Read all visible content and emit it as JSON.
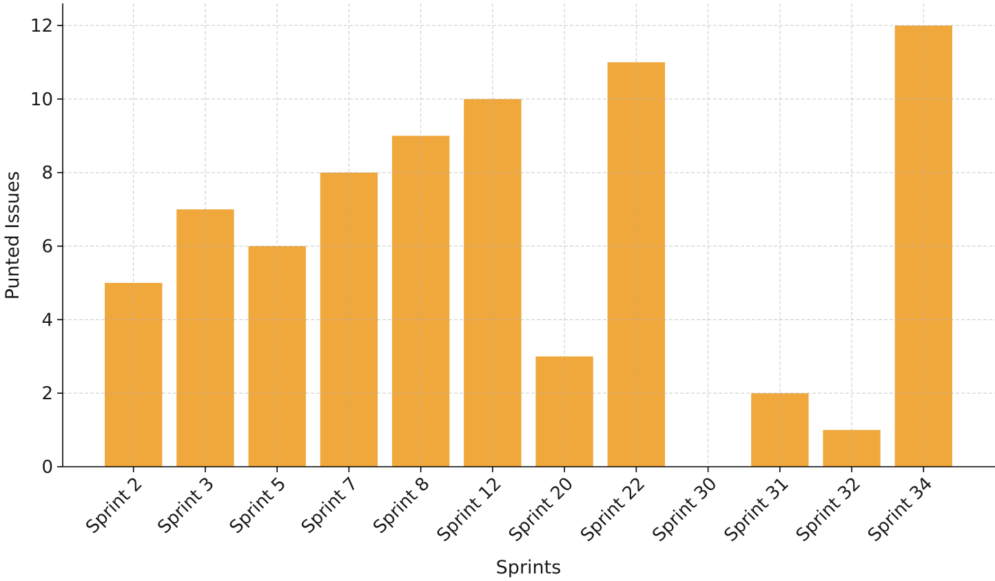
{
  "chart_data": {
    "type": "bar",
    "title": "",
    "xlabel": "Sprints",
    "ylabel": "Punted Issues",
    "categories": [
      "Sprint 2",
      "Sprint 3",
      "Sprint 5",
      "Sprint 7",
      "Sprint 8",
      "Sprint 12",
      "Sprint 20",
      "Sprint 22",
      "Sprint 30",
      "Sprint 31",
      "Sprint 32",
      "Sprint 34"
    ],
    "values": [
      5,
      7,
      6,
      8,
      9,
      10,
      3,
      11,
      0,
      2,
      1,
      12
    ],
    "ylim": [
      0,
      12.6
    ],
    "yticks": [
      0,
      2,
      4,
      6,
      8,
      10,
      12
    ],
    "grid": true,
    "legend": "none",
    "bar_color": "#f0a83c"
  }
}
